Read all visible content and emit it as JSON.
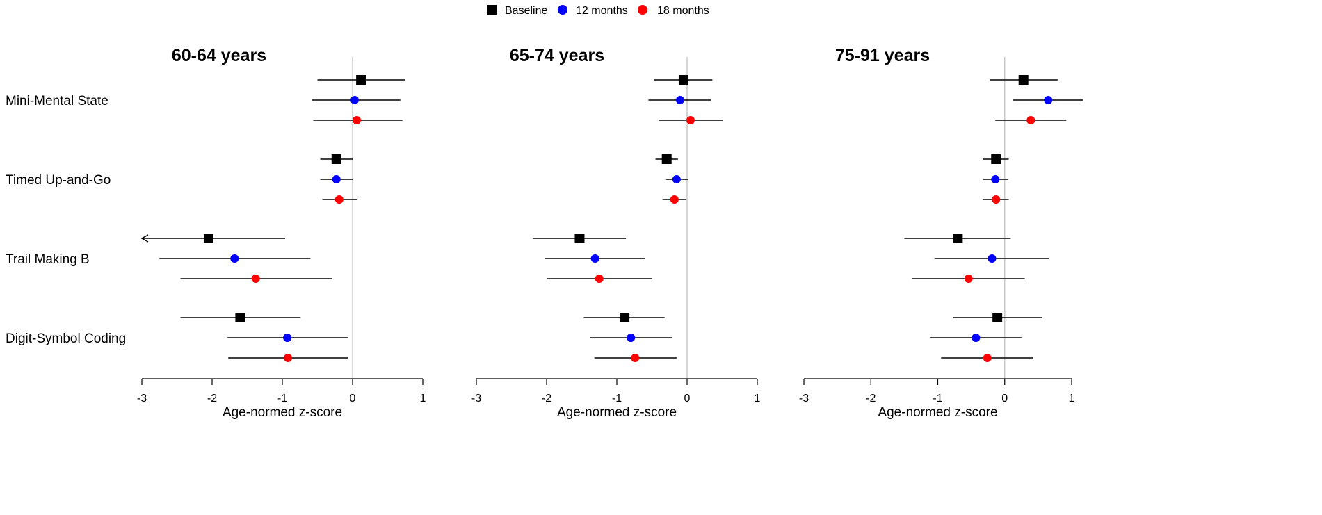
{
  "legend": {
    "items": [
      {
        "label": "Baseline",
        "marker": "square",
        "color": "#000000"
      },
      {
        "label": "12 months",
        "marker": "circle",
        "color": "#0000FF"
      },
      {
        "label": "18 months",
        "marker": "circle",
        "color": "#FF0000"
      }
    ]
  },
  "chart_data": [
    {
      "type": "forest",
      "title": "60-64 years",
      "xlabel": "Age-normed z-score",
      "xlim": [
        -3,
        1
      ],
      "xticks": [
        "-3",
        "-2",
        "-1",
        "0",
        "1"
      ],
      "reference_line_x": 0,
      "rows": [
        {
          "label": "Mini-Mental State",
          "estimates": [
            {
              "series": "Baseline",
              "value": 0.12,
              "lower": -0.5,
              "upper": 0.75
            },
            {
              "series": "12 months",
              "value": 0.03,
              "lower": -0.58,
              "upper": 0.68
            },
            {
              "series": "18 months",
              "value": 0.06,
              "lower": -0.56,
              "upper": 0.71
            }
          ]
        },
        {
          "label": "Timed Up-and-Go",
          "estimates": [
            {
              "series": "Baseline",
              "value": -0.23,
              "lower": -0.46,
              "upper": 0.01
            },
            {
              "series": "12 months",
              "value": -0.23,
              "lower": -0.46,
              "upper": 0.01
            },
            {
              "series": "18 months",
              "value": -0.19,
              "lower": -0.43,
              "upper": 0.06
            }
          ]
        },
        {
          "label": "Trail Making B",
          "estimates": [
            {
              "series": "Baseline",
              "value": -2.05,
              "lower": -3.0,
              "upper": -0.96,
              "lower_truncated": true
            },
            {
              "series": "12 months",
              "value": -1.68,
              "lower": -2.75,
              "upper": -0.6
            },
            {
              "series": "18 months",
              "value": -1.38,
              "lower": -2.45,
              "upper": -0.29
            }
          ]
        },
        {
          "label": "Digit-Symbol Coding",
          "estimates": [
            {
              "series": "Baseline",
              "value": -1.6,
              "lower": -2.45,
              "upper": -0.74
            },
            {
              "series": "12 months",
              "value": -0.93,
              "lower": -1.78,
              "upper": -0.07
            },
            {
              "series": "18 months",
              "value": -0.92,
              "lower": -1.77,
              "upper": -0.06
            }
          ]
        }
      ]
    },
    {
      "type": "forest",
      "title": "65-74 years",
      "xlabel": "Age-normed z-score",
      "xlim": [
        -3,
        1
      ],
      "xticks": [
        "-3",
        "-2",
        "-1",
        "0",
        "1"
      ],
      "reference_line_x": 0,
      "rows": [
        {
          "label": "Mini-Mental State",
          "estimates": [
            {
              "series": "Baseline",
              "value": -0.05,
              "lower": -0.47,
              "upper": 0.36
            },
            {
              "series": "12 months",
              "value": -0.1,
              "lower": -0.55,
              "upper": 0.34
            },
            {
              "series": "18 months",
              "value": 0.05,
              "lower": -0.4,
              "upper": 0.51
            }
          ]
        },
        {
          "label": "Timed Up-and-Go",
          "estimates": [
            {
              "series": "Baseline",
              "value": -0.29,
              "lower": -0.45,
              "upper": -0.13
            },
            {
              "series": "12 months",
              "value": -0.15,
              "lower": -0.31,
              "upper": 0.01
            },
            {
              "series": "18 months",
              "value": -0.18,
              "lower": -0.35,
              "upper": -0.02
            }
          ]
        },
        {
          "label": "Trail Making B",
          "estimates": [
            {
              "series": "Baseline",
              "value": -1.53,
              "lower": -2.2,
              "upper": -0.87
            },
            {
              "series": "12 months",
              "value": -1.31,
              "lower": -2.02,
              "upper": -0.6
            },
            {
              "series": "18 months",
              "value": -1.25,
              "lower": -1.99,
              "upper": -0.5
            }
          ]
        },
        {
          "label": "Digit-Symbol Coding",
          "estimates": [
            {
              "series": "Baseline",
              "value": -0.89,
              "lower": -1.47,
              "upper": -0.32
            },
            {
              "series": "12 months",
              "value": -0.8,
              "lower": -1.38,
              "upper": -0.21
            },
            {
              "series": "18 months",
              "value": -0.74,
              "lower": -1.32,
              "upper": -0.15
            }
          ]
        }
      ]
    },
    {
      "type": "forest",
      "title": "75-91 years",
      "xlabel": "Age-normed z-score",
      "xlim": [
        -3,
        1
      ],
      "xticks": [
        "-3",
        "-2",
        "-1",
        "0",
        "1"
      ],
      "reference_line_x": 0,
      "rows": [
        {
          "label": "Mini-Mental State",
          "estimates": [
            {
              "series": "Baseline",
              "value": 0.28,
              "lower": -0.22,
              "upper": 0.79
            },
            {
              "series": "12 months",
              "value": 0.65,
              "lower": 0.12,
              "upper": 1.17
            },
            {
              "series": "18 months",
              "value": 0.39,
              "lower": -0.14,
              "upper": 0.92
            }
          ]
        },
        {
          "label": "Timed Up-and-Go",
          "estimates": [
            {
              "series": "Baseline",
              "value": -0.13,
              "lower": -0.32,
              "upper": 0.06
            },
            {
              "series": "12 months",
              "value": -0.14,
              "lower": -0.33,
              "upper": 0.05
            },
            {
              "series": "18 months",
              "value": -0.13,
              "lower": -0.32,
              "upper": 0.06
            }
          ]
        },
        {
          "label": "Trail Making B",
          "estimates": [
            {
              "series": "Baseline",
              "value": -0.7,
              "lower": -1.5,
              "upper": 0.09
            },
            {
              "series": "12 months",
              "value": -0.19,
              "lower": -1.05,
              "upper": 0.66
            },
            {
              "series": "18 months",
              "value": -0.54,
              "lower": -1.38,
              "upper": 0.3
            }
          ]
        },
        {
          "label": "Digit-Symbol Coding",
          "estimates": [
            {
              "series": "Baseline",
              "value": -0.11,
              "lower": -0.77,
              "upper": 0.56
            },
            {
              "series": "12 months",
              "value": -0.43,
              "lower": -1.12,
              "upper": 0.25
            },
            {
              "series": "18 months",
              "value": -0.26,
              "lower": -0.95,
              "upper": 0.42
            }
          ]
        }
      ]
    }
  ]
}
